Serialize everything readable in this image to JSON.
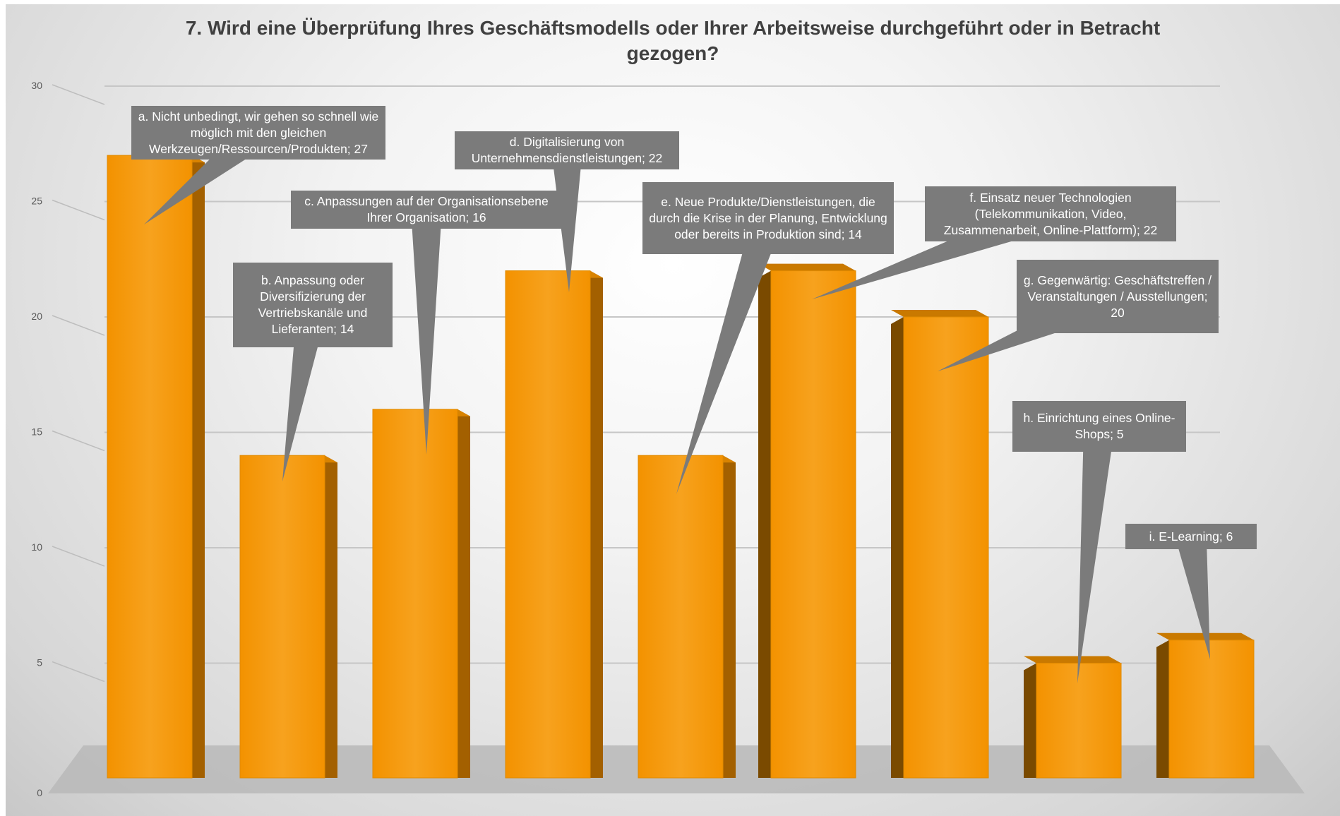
{
  "chart_data": {
    "type": "bar",
    "title": "7. Wird eine Überprüfung Ihres Geschäftsmodells oder Ihrer Arbeitsweise durchgeführt oder in Betracht gezogen?",
    "ylim": [
      0,
      30
    ],
    "yticks": [
      0,
      5,
      10,
      15,
      20,
      25,
      30
    ],
    "grid": true,
    "style": "3d-column",
    "colors": {
      "bar": "#f39200",
      "bar_side": "#a36000",
      "callout": "#7b7b7b",
      "gridline": "#c9c9c9"
    },
    "categories": [
      "a. Nicht unbedingt, wir gehen so schnell wie möglich mit den gleichen Werkzeugen/Ressourcen/Produkten",
      "b. Anpassung oder Diversifizierung der Vertriebskanäle und Lieferanten",
      "c. Anpassungen auf der Organisationsebene Ihrer Organisation",
      "d. Digitalisierung von Unternehmensdienstleistungen",
      "e. Neue Produkte/Dienstleistungen, die durch die Krise in der Planung, Entwicklung oder bereits in Produktion sind",
      "f. Einsatz neuer Technologien (Telekommunikation, Video, Zusammenarbeit, Online-Plattform)",
      "g. Gegenwärtig: Geschäftstreffen / Veranstaltungen / Ausstellungen",
      "h. Einrichtung eines Online-Shops",
      "i. E-Learning"
    ],
    "values": [
      27,
      14,
      16,
      22,
      14,
      22,
      20,
      5,
      6
    ],
    "data_labels": [
      "a. Nicht unbedingt, wir gehen so schnell wie möglich mit den gleichen Werkzeugen/Ressourcen/Produkten; 27",
      "b. Anpassung oder Diversifizierung der Vertriebskanäle und Lieferanten; 14",
      "c. Anpassungen auf der Organisationsebene Ihrer Organisation; 16",
      "d. Digitalisierung von Unternehmensdienstleistungen; 22",
      "e. Neue Produkte/Dienstleistungen, die durch die Krise in der Planung, Entwicklung oder bereits in Produktion sind; 14",
      "f. Einsatz neuer Technologien (Telekommunikation, Video, Zusammenarbeit, Online-Plattform); 22",
      "g. Gegenwärtig: Geschäftstreffen / Veranstaltungen / Ausstellungen; 20",
      "h. Einrichtung eines Online-Shops; 5",
      "i. E-Learning; 6"
    ]
  }
}
